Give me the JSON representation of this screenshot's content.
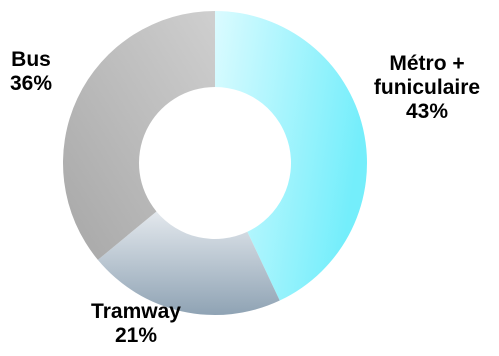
{
  "chart_data": {
    "type": "pie",
    "variant": "donut",
    "categories": [
      "Métro + funiculaire",
      "Tramway",
      "Bus"
    ],
    "values": [
      43,
      21,
      36
    ],
    "labels": [
      {
        "name_lines": [
          "Métro +",
          "funiculaire"
        ],
        "pct": "43%"
      },
      {
        "name_lines": [
          "Tramway"
        ],
        "pct": "21%"
      },
      {
        "name_lines": [
          "Bus"
        ],
        "pct": "36%"
      }
    ],
    "colors": [
      {
        "from": "#dbfbff",
        "to": "#74eefb"
      },
      {
        "from": "#e3e8ed",
        "to": "#8fa3b4"
      },
      {
        "from": "#cfcfcf",
        "to": "#a7a7a7"
      }
    ],
    "start": "top",
    "direction": "clockwise"
  }
}
